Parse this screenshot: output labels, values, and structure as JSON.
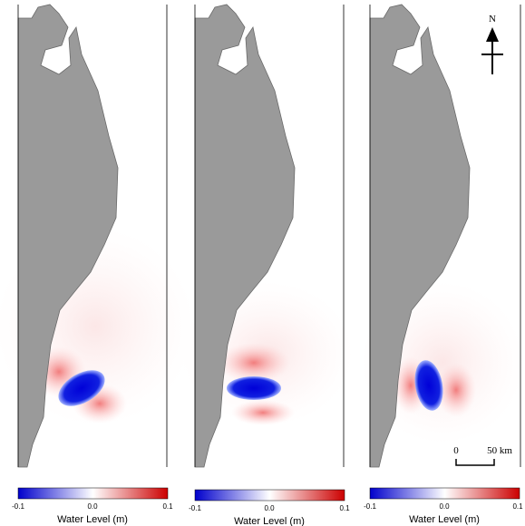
{
  "north_label": "N",
  "scale_bar": {
    "start": "0",
    "end": "50 km"
  },
  "panels": [
    {
      "colorbar": {
        "ticks": [
          "-0.1",
          "0.0",
          "0.1"
        ],
        "label": "Water Level (m)"
      }
    },
    {
      "colorbar": {
        "ticks": [
          "-0.1",
          "0.0",
          "0.1"
        ],
        "label": "Water Level (m)"
      }
    },
    {
      "colorbar": {
        "ticks": [
          "-0.1",
          "0.0",
          "0.1"
        ],
        "label": "Water Level (m)"
      }
    }
  ]
}
